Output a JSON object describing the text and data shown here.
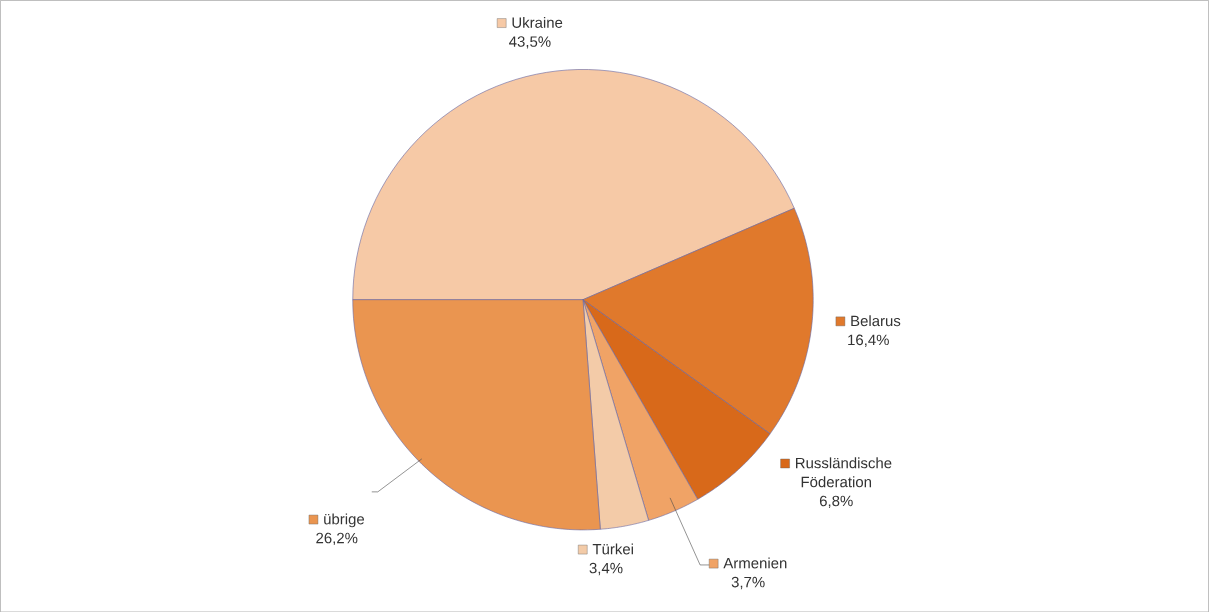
{
  "chart_data": {
    "type": "pie",
    "categories": [
      "Ukraine",
      "Belarus",
      "Russländische Föderation",
      "Armenien",
      "Türkei",
      "übrige"
    ],
    "values": [
      43.5,
      16.4,
      6.8,
      3.7,
      3.4,
      26.2
    ],
    "value_labels": [
      "43,5%",
      "16,4%",
      "6,8%",
      "3,7%",
      "3,4%",
      "26,2%"
    ],
    "legend": "right",
    "colors": [
      "#f6c9a6",
      "#e0792c",
      "#d8691a",
      "#f0a366",
      "#f3cba8",
      "#ea9550"
    ]
  }
}
